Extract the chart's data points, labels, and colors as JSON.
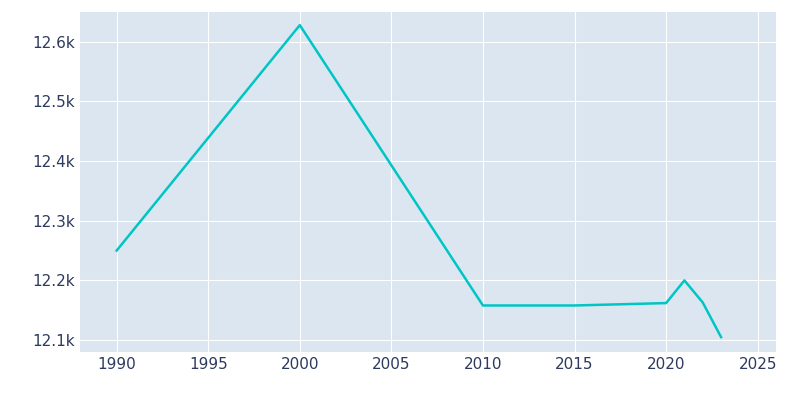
{
  "years": [
    1990,
    2000,
    2010,
    2015,
    2020,
    2021,
    2022,
    2023
  ],
  "population": [
    12250,
    12628,
    12158,
    12158,
    12162,
    12200,
    12163,
    12105
  ],
  "line_color": "#00C5C5",
  "plot_background_color": "#dce6f0",
  "figure_background": "#ffffff",
  "ylim": [
    12080,
    12650
  ],
  "xlim": [
    1988,
    2026
  ],
  "xticks": [
    1990,
    1995,
    2000,
    2005,
    2010,
    2015,
    2020,
    2025
  ],
  "ytick_labels": [
    "12.1k",
    "12.2k",
    "12.3k",
    "12.4k",
    "12.5k",
    "12.6k"
  ],
  "ytick_values": [
    12100,
    12200,
    12300,
    12400,
    12500,
    12600
  ],
  "line_width": 1.8,
  "grid_color": "#ffffff",
  "tick_label_color": "#2d3a5e",
  "tick_fontsize": 11
}
